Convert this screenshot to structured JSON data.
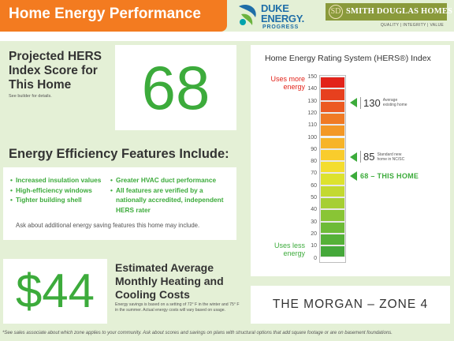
{
  "header": {
    "title": "Home Energy Performance"
  },
  "logos": {
    "duke": {
      "name_line1": "DUKE",
      "name_line2": "ENERGY.",
      "sub": "PROGRESS",
      "icon": "duke-energy-logo-icon"
    },
    "smith_douglas": {
      "name": "SMITH DOUGLAS HOMES",
      "tagline": "QUALITY | INTEGRITY | VALUE",
      "icon": "sd-monogram-icon"
    }
  },
  "hers": {
    "title": "Projected HERS Index Score for This Home",
    "note": "See builder for details.",
    "score": "68"
  },
  "efficiency": {
    "title": "Energy Efficiency Features Include:",
    "features_left": [
      "Increased insulation values",
      "High-efficiency windows",
      "Tighter building shell"
    ],
    "features_right": [
      "Greater HVAC duct performance",
      "All features are verified by a nationally accredited, independent HERS rater"
    ],
    "ask": "Ask about additional energy saving features this home may include."
  },
  "savings": {
    "amount": "$44",
    "title": "Estimated Average Monthly Heating and Cooling Costs",
    "note": "Energy savings is based on a setting of 72° F in the winter and 75° F in the summer. Actual energy costs will vary based on usage."
  },
  "rating_chart": {
    "title": "Home Energy Rating System (HERS®) Index",
    "uses_more": [
      "Uses more",
      "energy"
    ],
    "uses_less": [
      "Uses less",
      "energy"
    ],
    "ticks": [
      "150",
      "140",
      "130",
      "120",
      "110",
      "100",
      "90",
      "80",
      "70",
      "60",
      "50",
      "40",
      "30",
      "20",
      "10",
      "0"
    ],
    "segment_colors": [
      "#e2231a",
      "#e7401e",
      "#ec5a22",
      "#f07a24",
      "#f39826",
      "#f7b428",
      "#f9cc2c",
      "#f4dd2e",
      "#dde22f",
      "#c3d931",
      "#a6cf33",
      "#89c535",
      "#6dbb37",
      "#55b138",
      "#45a83a"
    ],
    "markers": [
      {
        "value": 130,
        "label": "130",
        "desc": [
          "Average",
          "existing home"
        ]
      },
      {
        "value": 85,
        "label": "85",
        "desc": [
          "Standard new",
          "home in NC/SC"
        ]
      },
      {
        "value": 68,
        "label": "68 – THIS HOME"
      }
    ]
  },
  "model": {
    "name": "THE MORGAN – ZONE 4"
  },
  "footnote": "*See sales associate about which zone applies to your community.  Ask about scores and savings on plans with structural options that add square footage or are on basement foundations."
}
